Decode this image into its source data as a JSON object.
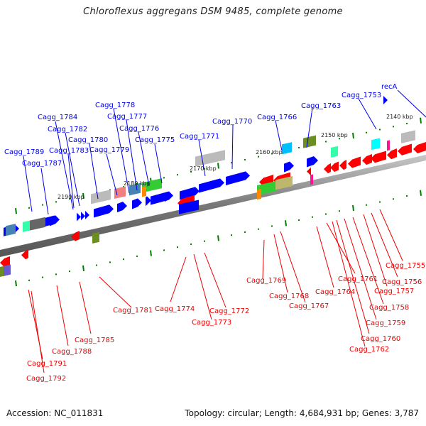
{
  "title": "Chloroflexus aggregans DSM 9485, complete genome",
  "footer": {
    "accession": "Accession: NC_011831",
    "summary": "Topology: circular; Length: 4,684,931 bp; Genes: 3,787"
  },
  "colors": {
    "forward_label": "#0000ee",
    "reverse_label": "#ee0000",
    "forward_gene": "#0000ff",
    "reverse_gene": "#ff0000",
    "backbone": "#888888",
    "tick": "#008000"
  },
  "scale_labels": [
    "2140 kbp",
    "2150 kbp",
    "2160 kbp",
    "2170 kbp",
    "2180 kbp",
    "2190 kbp"
  ],
  "forward_labels": [
    "recA",
    "Cagg_1753",
    "Cagg_1763",
    "Cagg_1766",
    "Cagg_1770",
    "Cagg_1771",
    "Cagg_1775",
    "Cagg_1776",
    "Cagg_1777",
    "Cagg_1778",
    "Cagg_1779",
    "Cagg_1780",
    "Cagg_1782",
    "Cagg_1783",
    "Cagg_1784",
    "Cagg_1787",
    "Cagg_1789"
  ],
  "reverse_labels": [
    "Cagg_1755",
    "Cagg_1756",
    "Cagg_1757",
    "Cagg_1758",
    "Cagg_1759",
    "Cagg_1760",
    "Cagg_1761",
    "Cagg_1762",
    "Cagg_1764",
    "Cagg_1767",
    "Cagg_1768",
    "Cagg_1769",
    "Cagg_1772",
    "Cagg_1773",
    "Cagg_1774",
    "Cagg_1781",
    "Cagg_1785",
    "Cagg_1788",
    "Cagg_1791",
    "Cagg_1792"
  ]
}
